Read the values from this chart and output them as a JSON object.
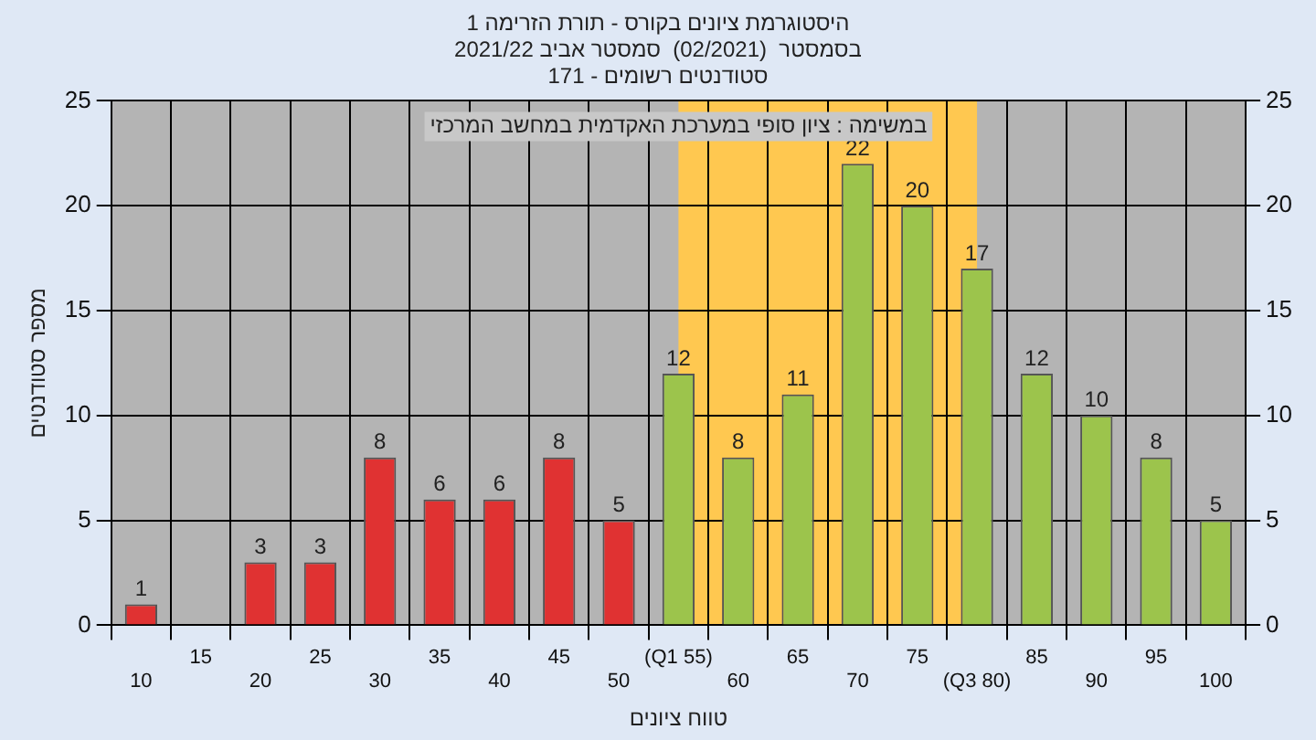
{
  "chart_data": {
    "type": "bar",
    "title": "היסטוגרמת ציונים בקורס - תורת הזרימה 1",
    "subtitle": "בסמסטר  (02/2021)  סמסטר אביב 2021/22\nסטודנטים רשומים - 171",
    "xlabel": "טווח ציונים",
    "ylabel": "מספר סטודנטים",
    "annotations": [
      "במשימה : ציון סופי במערכת האקדמית במחשב המרכזי"
    ],
    "categories": [
      "10",
      "15",
      "20",
      "25",
      "30",
      "35",
      "40",
      "45",
      "50",
      "(Q1 55)",
      "60",
      "65",
      "70",
      "75",
      "(Q3 80)",
      "85",
      "90",
      "95",
      "100"
    ],
    "values": [
      1,
      null,
      3,
      3,
      8,
      6,
      6,
      8,
      5,
      12,
      8,
      11,
      22,
      20,
      17,
      12,
      10,
      8,
      5
    ],
    "colors": [
      "#e03232",
      "#e03232",
      "#e03232",
      "#e03232",
      "#e03232",
      "#e03232",
      "#e03232",
      "#e03232",
      "#e03232",
      "#9cc44c",
      "#9cc44c",
      "#9cc44c",
      "#9cc44c",
      "#9cc44c",
      "#9cc44c",
      "#9cc44c",
      "#9cc44c",
      "#9cc44c",
      "#9cc44c"
    ],
    "ylim": [
      0,
      25
    ],
    "yticks": [
      0,
      5,
      10,
      15,
      20,
      25
    ],
    "y2lim": [
      0,
      25
    ],
    "y2ticks": [
      0,
      5,
      10,
      15,
      20,
      25
    ],
    "bands": [
      {
        "axis": "x",
        "from": "(Q1 55)",
        "to": "(Q3 80)",
        "color": "#ffc850"
      }
    ],
    "data_labels": true,
    "grid": true
  }
}
